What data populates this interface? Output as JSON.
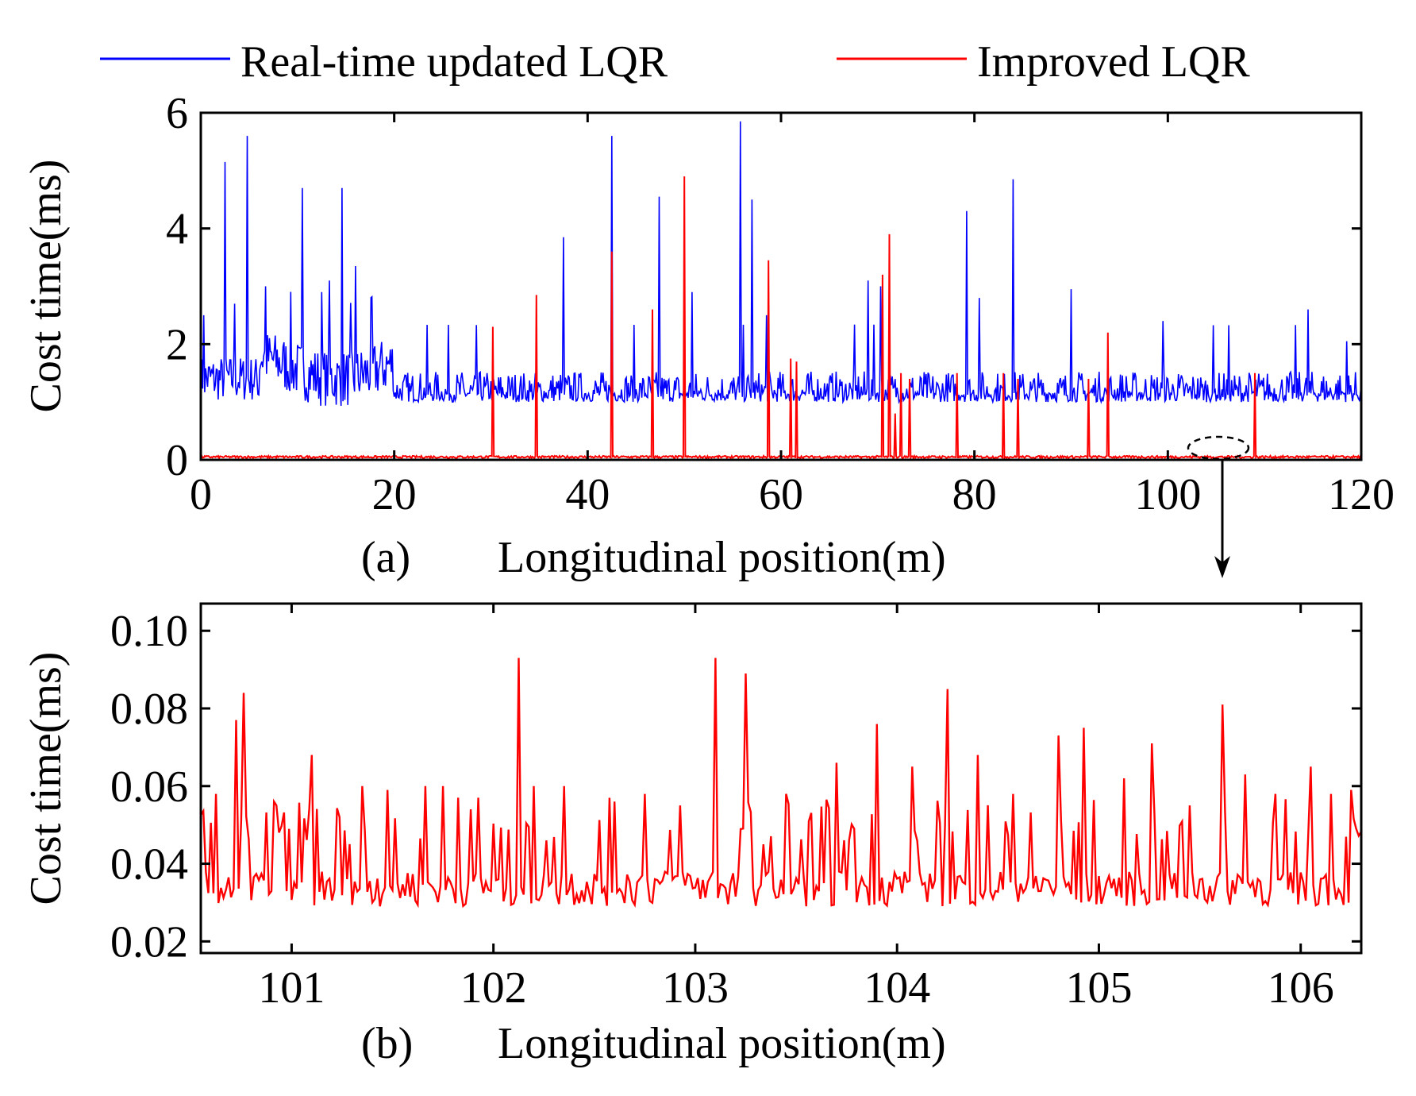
{
  "legend": {
    "items": [
      {
        "label": "Real-time updated LQR",
        "color": "#0000ff"
      },
      {
        "label": "Improved LQR",
        "color": "#ff0000"
      }
    ]
  },
  "chart_data": [
    {
      "type": "line",
      "panel": "(a)",
      "xlabel": "Longitudinal position(m)",
      "ylabel": "Cost time(ms)",
      "xlim": [
        0,
        120
      ],
      "ylim": [
        0,
        6
      ],
      "xticks": [
        "0",
        "20",
        "40",
        "60",
        "80",
        "100",
        "120"
      ],
      "yticks": [
        "0",
        "2",
        "4",
        "6"
      ],
      "grid": false,
      "series": [
        {
          "name": "Real-time updated LQR",
          "color": "#0000ff",
          "baseline": 1.0,
          "noise_band": [
            1.0,
            1.5
          ],
          "noisy_segment_0_20m": [
            1.2,
            2.4
          ],
          "spikes": [
            {
              "x": 0.3,
              "y": 2.5
            },
            {
              "x": 2.5,
              "y": 5.15
            },
            {
              "x": 3.5,
              "y": 2.7
            },
            {
              "x": 4.8,
              "y": 5.6
            },
            {
              "x": 6.7,
              "y": 3.0
            },
            {
              "x": 10.5,
              "y": 4.7
            },
            {
              "x": 12.5,
              "y": 2.9
            },
            {
              "x": 13.3,
              "y": 3.1
            },
            {
              "x": 14.6,
              "y": 4.7
            },
            {
              "x": 16.0,
              "y": 3.35
            },
            {
              "x": 37.5,
              "y": 3.85
            },
            {
              "x": 42.5,
              "y": 5.6
            },
            {
              "x": 47.4,
              "y": 4.55
            },
            {
              "x": 50.8,
              "y": 2.9
            },
            {
              "x": 55.8,
              "y": 5.85
            },
            {
              "x": 57.0,
              "y": 4.5
            },
            {
              "x": 58.5,
              "y": 2.5
            },
            {
              "x": 69.0,
              "y": 3.1
            },
            {
              "x": 70.3,
              "y": 3.0
            },
            {
              "x": 79.2,
              "y": 4.3
            },
            {
              "x": 80.5,
              "y": 2.8
            },
            {
              "x": 84.0,
              "y": 4.85
            },
            {
              "x": 90.0,
              "y": 2.95
            },
            {
              "x": 99.5,
              "y": 2.4
            },
            {
              "x": 114.5,
              "y": 2.6
            },
            {
              "x": 118.5,
              "y": 2.05
            }
          ]
        },
        {
          "name": "Improved LQR",
          "color": "#ff0000",
          "baseline": 0.05,
          "spikes": [
            {
              "x": 30.2,
              "y": 2.3
            },
            {
              "x": 34.7,
              "y": 2.85
            },
            {
              "x": 42.5,
              "y": 3.6
            },
            {
              "x": 46.7,
              "y": 2.6
            },
            {
              "x": 50.0,
              "y": 4.9
            },
            {
              "x": 58.7,
              "y": 3.45
            },
            {
              "x": 61.0,
              "y": 1.75
            },
            {
              "x": 61.6,
              "y": 1.7
            },
            {
              "x": 70.5,
              "y": 3.2
            },
            {
              "x": 71.2,
              "y": 3.9
            },
            {
              "x": 71.8,
              "y": 0.8
            },
            {
              "x": 72.4,
              "y": 1.5
            },
            {
              "x": 73.3,
              "y": 1.4
            },
            {
              "x": 78.2,
              "y": 1.5
            },
            {
              "x": 83.0,
              "y": 1.5
            },
            {
              "x": 84.5,
              "y": 1.4
            },
            {
              "x": 91.8,
              "y": 1.4
            },
            {
              "x": 93.8,
              "y": 2.2
            },
            {
              "x": 109.0,
              "y": 1.5
            }
          ]
        }
      ],
      "annotation": {
        "type": "dashed-ellipse",
        "center_x": 105.0,
        "center_y": 0.05,
        "note": "arrow points to zoomed panel (b)"
      }
    },
    {
      "type": "line",
      "panel": "(b)",
      "xlabel": "Longitudinal position(m)",
      "ylabel": "Cost time(ms)",
      "xlim": [
        100.55,
        106.3
      ],
      "ylim": [
        0.017,
        0.107
      ],
      "xticks": [
        "101",
        "102",
        "103",
        "104",
        "105",
        "106"
      ],
      "yticks": [
        "0.02",
        "0.04",
        "0.06",
        "0.08",
        "0.10"
      ],
      "grid": false,
      "series": [
        {
          "name": "Improved LQR",
          "color": "#ff0000",
          "baseline_range": [
            0.029,
            0.04
          ],
          "peaks": [
            {
              "x": 100.62,
              "y": 0.058
            },
            {
              "x": 100.72,
              "y": 0.077
            },
            {
              "x": 100.76,
              "y": 0.084
            },
            {
              "x": 100.92,
              "y": 0.055
            },
            {
              "x": 101.1,
              "y": 0.068
            },
            {
              "x": 101.24,
              "y": 0.052
            },
            {
              "x": 101.35,
              "y": 0.06
            },
            {
              "x": 101.47,
              "y": 0.059
            },
            {
              "x": 101.66,
              "y": 0.06
            },
            {
              "x": 101.75,
              "y": 0.06
            },
            {
              "x": 101.82,
              "y": 0.057
            },
            {
              "x": 101.93,
              "y": 0.057
            },
            {
              "x": 102.12,
              "y": 0.093
            },
            {
              "x": 102.2,
              "y": 0.06
            },
            {
              "x": 102.35,
              "y": 0.06
            },
            {
              "x": 102.6,
              "y": 0.056
            },
            {
              "x": 102.75,
              "y": 0.058
            },
            {
              "x": 102.92,
              "y": 0.055
            },
            {
              "x": 103.1,
              "y": 0.093
            },
            {
              "x": 103.25,
              "y": 0.089
            },
            {
              "x": 103.45,
              "y": 0.058
            },
            {
              "x": 103.7,
              "y": 0.066
            },
            {
              "x": 103.9,
              "y": 0.076
            },
            {
              "x": 104.08,
              "y": 0.065
            },
            {
              "x": 104.25,
              "y": 0.085
            },
            {
              "x": 104.4,
              "y": 0.068
            },
            {
              "x": 104.58,
              "y": 0.058
            },
            {
              "x": 104.8,
              "y": 0.073
            },
            {
              "x": 104.93,
              "y": 0.075
            },
            {
              "x": 105.12,
              "y": 0.062
            },
            {
              "x": 105.26,
              "y": 0.071
            },
            {
              "x": 105.45,
              "y": 0.055
            },
            {
              "x": 105.61,
              "y": 0.081
            },
            {
              "x": 105.72,
              "y": 0.063
            },
            {
              "x": 105.88,
              "y": 0.058
            },
            {
              "x": 106.05,
              "y": 0.065
            },
            {
              "x": 106.15,
              "y": 0.058
            },
            {
              "x": 106.25,
              "y": 0.059
            }
          ]
        }
      ]
    }
  ]
}
